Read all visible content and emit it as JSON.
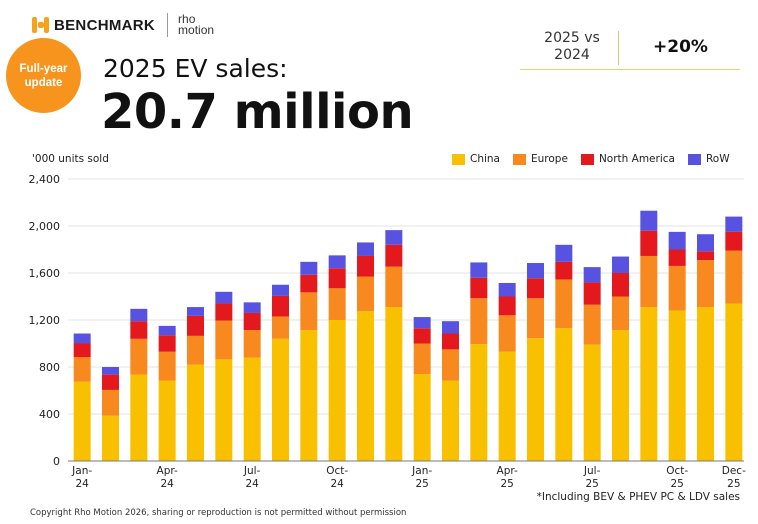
{
  "brand": {
    "name": "BENCHMARK",
    "partner_line1": "rho",
    "partner_line2": "motion"
  },
  "badge": {
    "line1": "Full-year",
    "line2": "update"
  },
  "headline": {
    "subtitle": "2025 EV sales:",
    "value": "20.7 million"
  },
  "comparison": {
    "label_line1": "2025 vs",
    "label_line2": "2024",
    "value": "+20%"
  },
  "footnote": "*Including BEV & PHEV PC & LDV sales",
  "copyright": "Copyright Rho Motion 2026, sharing or reproduction is not permitted without permission",
  "colors": {
    "China": "#f9c000",
    "Europe": "#f7891f",
    "North America": "#e3191d",
    "RoW": "#5852e0",
    "badge": "#f7941d",
    "brand": "#f5a31a"
  },
  "chart_data": {
    "type": "bar",
    "stacked": true,
    "ylabel": "'000 units sold",
    "ylim": [
      0,
      2400
    ],
    "yticks": [
      "0",
      "400",
      "800",
      "1,200",
      "1,600",
      "2,000",
      "2,400"
    ],
    "ytick_values": [
      0,
      400,
      800,
      1200,
      1600,
      2000,
      2400
    ],
    "grid": true,
    "legend_position": "top-right",
    "categories": [
      "Jan-24",
      "Feb-24",
      "Mar-24",
      "Apr-24",
      "May-24",
      "Jun-24",
      "Jul-24",
      "Aug-24",
      "Sep-24",
      "Oct-24",
      "Nov-24",
      "Dec-24",
      "Jan-25",
      "Feb-25",
      "Mar-25",
      "Apr-25",
      "May-25",
      "Jun-25",
      "Jul-25",
      "Aug-25",
      "Sep-25",
      "Oct-25",
      "Nov-25",
      "Dec-25"
    ],
    "x_tick_labels": [
      {
        "index": 0,
        "line1": "Jan-",
        "line2": "24"
      },
      {
        "index": 3,
        "line1": "Apr-",
        "line2": "24"
      },
      {
        "index": 6,
        "line1": "Jul-",
        "line2": "24"
      },
      {
        "index": 9,
        "line1": "Oct-",
        "line2": "24"
      },
      {
        "index": 12,
        "line1": "Jan-",
        "line2": "25"
      },
      {
        "index": 15,
        "line1": "Apr-",
        "line2": "25"
      },
      {
        "index": 18,
        "line1": "Jul-",
        "line2": "25"
      },
      {
        "index": 21,
        "line1": "Oct-",
        "line2": "25"
      },
      {
        "index": 23,
        "line1": "Dec-",
        "line2": "25"
      }
    ],
    "series": [
      {
        "name": "China",
        "values": [
          675,
          385,
          735,
          685,
          820,
          865,
          880,
          1040,
          1115,
          1200,
          1275,
          1310,
          740,
          685,
          995,
          930,
          1045,
          1130,
          990,
          1115,
          1310,
          1280,
          1310,
          1340
        ]
      },
      {
        "name": "Europe",
        "values": [
          210,
          220,
          305,
          245,
          245,
          330,
          235,
          190,
          320,
          270,
          295,
          345,
          260,
          265,
          390,
          310,
          340,
          415,
          340,
          285,
          435,
          380,
          400,
          450
        ]
      },
      {
        "name": "North America",
        "values": [
          115,
          130,
          150,
          140,
          170,
          145,
          145,
          175,
          150,
          170,
          175,
          185,
          130,
          135,
          175,
          160,
          170,
          150,
          190,
          200,
          215,
          140,
          75,
          160
        ]
      },
      {
        "name": "RoW",
        "values": [
          85,
          65,
          105,
          80,
          75,
          100,
          90,
          95,
          110,
          110,
          115,
          125,
          95,
          105,
          130,
          115,
          130,
          145,
          130,
          140,
          170,
          150,
          145,
          130
        ]
      }
    ]
  }
}
